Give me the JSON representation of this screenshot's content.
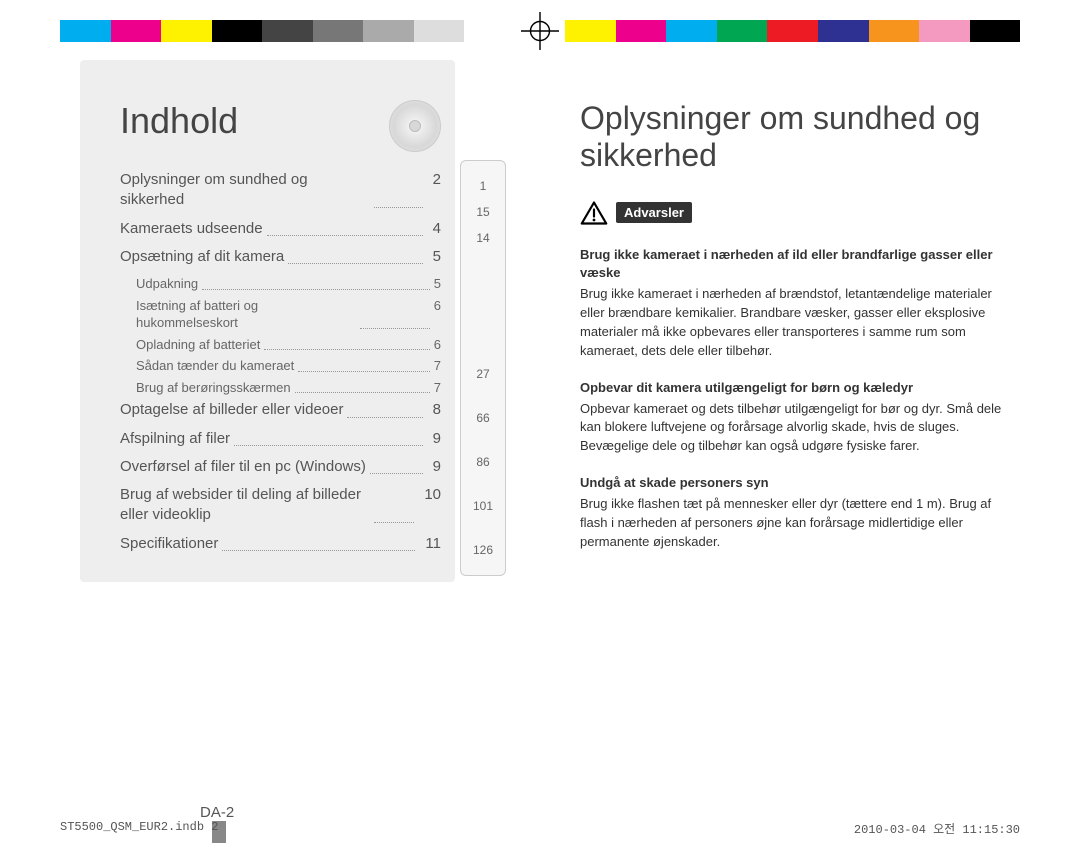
{
  "color_bar": [
    "#00aeef",
    "#ec008c",
    "#fff200",
    "#000000",
    "#444444",
    "#777777",
    "#aaaaaa",
    "#dddddd",
    "#ffffff",
    "#ffffff",
    "#fff200",
    "#ec008c",
    "#00aeef",
    "#00a651",
    "#ed1c24",
    "#2e3192",
    "#f7941d",
    "#f49ac1",
    "#000000"
  ],
  "toc": {
    "title": "Indhold",
    "items": [
      {
        "label": "Oplysninger om sundhed og sikkerhed",
        "page": "2",
        "ref": "1"
      },
      {
        "label": "Kameraets udseende",
        "page": "4",
        "ref": "15"
      },
      {
        "label": "Opsætning af dit kamera",
        "page": "5",
        "ref": "14",
        "subs": [
          {
            "label": "Udpakning",
            "page": "5"
          },
          {
            "label": "Isætning af batteri og hukommelseskort",
            "page": "6"
          },
          {
            "label": "Opladning af batteriet",
            "page": "6"
          },
          {
            "label": "Sådan tænder du kameraet",
            "page": "7"
          },
          {
            "label": "Brug af berøringsskærmen",
            "page": "7"
          }
        ]
      },
      {
        "label": "Optagelse af billeder eller videoer",
        "page": "8",
        "ref": "27"
      },
      {
        "label": "Afspilning af filer",
        "page": "9",
        "ref": "66"
      },
      {
        "label": "Overførsel af filer til en pc (Windows)",
        "page": "9",
        "ref": "86"
      },
      {
        "label": "Brug af websider til deling af billeder eller videoklip",
        "page": "10",
        "ref": "101"
      },
      {
        "label": "Specifikationer",
        "page": "11",
        "ref": "126"
      }
    ],
    "page_number": "DA-2"
  },
  "right": {
    "title": "Oplysninger om sundhed og sikkerhed",
    "warn_label": "Advarsler",
    "sections": [
      {
        "head": "Brug ikke kameraet i nærheden af ild eller brandfarlige gasser eller væske",
        "body": "Brug ikke kameraet i nærheden af brændstof, letantændelige materialer eller brændbare kemikalier. Brandbare væsker, gasser eller eksplosive materialer må ikke opbevares eller transporteres i samme rum som kameraet, dets dele eller tilbehør."
      },
      {
        "head": "Opbevar dit kamera utilgængeligt for børn og kæledyr",
        "body": "Opbevar kameraet og dets tilbehør utilgængeligt for bør og dyr. Små dele kan blokere luftvejene og forårsage alvorlig skade, hvis de sluges. Bevægelige dele og tilbehør kan også udgøre fysiske farer."
      },
      {
        "head": "Undgå at skade personers syn",
        "body": "Brug ikke flashen tæt på mennesker eller dyr (tættere end 1 m). Brug af flash i nærheden af personers øjne kan forårsage midlertidige eller permanente øjenskader."
      }
    ]
  },
  "footer": {
    "file": "ST5500_QSM_EUR2.indb   2",
    "timestamp": "2010-03-04   오전 11:15:30"
  }
}
